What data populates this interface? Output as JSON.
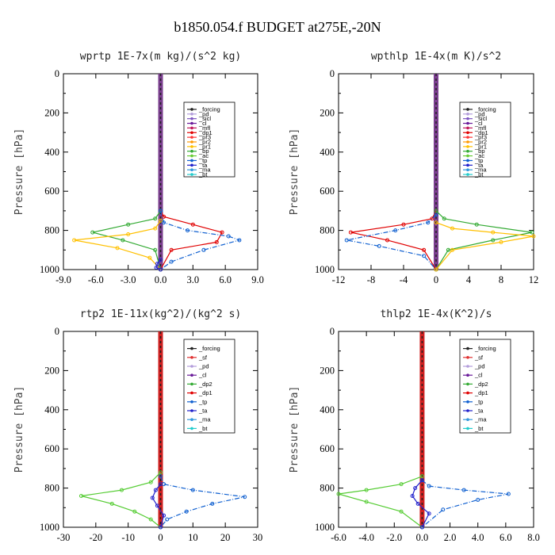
{
  "chart_data": [
    {
      "type": "line",
      "title": "wprtp   1E-7x(m kg)/(s^2 kg)",
      "ylabel": "Pressure [hPa]",
      "ylim": [
        0,
        1000
      ],
      "xlim": [
        -9.0,
        9.0
      ],
      "xticks": [
        "-9.0",
        "-6.0",
        "-3.0",
        "0.0",
        "3.0",
        "6.0",
        "9.0"
      ],
      "xtick_values": [
        -9,
        -6,
        -3,
        0,
        3,
        6,
        9
      ],
      "yticks": [
        "0",
        "200",
        "400",
        "600",
        "800",
        "1000"
      ],
      "legend": [
        "_forcing",
        "_pd",
        "_sicl",
        "_cl",
        "_mfl",
        "_dp1",
        "_pr3",
        "_pr2",
        "_pr1",
        "_bp",
        "_ac",
        "_tp",
        "_ta",
        "_ma",
        "_bt"
      ],
      "series": [
        {
          "name": "_dp1",
          "color": "#e00000",
          "x": [
            0,
            0.3,
            3.0,
            5.7,
            5.2,
            1.0,
            0
          ],
          "y": [
            700,
            730,
            770,
            810,
            860,
            900,
            1000
          ]
        },
        {
          "name": "_bp",
          "color": "#33aa33",
          "x": [
            0,
            -0.5,
            -3.0,
            -6.3,
            -3.5,
            -0.5,
            0
          ],
          "y": [
            700,
            740,
            770,
            810,
            850,
            900,
            1000
          ]
        },
        {
          "name": "_pr1",
          "color": "#ffc000",
          "x": [
            0,
            -0.5,
            -3.0,
            -8.0,
            -4.0,
            -1.0,
            0
          ],
          "y": [
            750,
            790,
            820,
            850,
            890,
            940,
            1000
          ]
        },
        {
          "name": "_tp",
          "color": "#1060d0",
          "x": [
            0,
            0.3,
            2.5,
            6.3,
            7.3,
            4.0,
            1.0,
            0
          ],
          "y": [
            700,
            760,
            800,
            830,
            850,
            900,
            960,
            1000
          ]
        },
        {
          "name": "_ta",
          "color": "#2222cc",
          "x": [
            0,
            -0.3,
            -0.4,
            0
          ],
          "y": [
            950,
            970,
            990,
            1000
          ]
        }
      ]
    },
    {
      "type": "line",
      "title": "wpthlp   1E-4x(m K)/s^2",
      "ylabel": "Pressure [hPa]",
      "ylim": [
        0,
        1000
      ],
      "xlim": [
        -12,
        12
      ],
      "xticks": [
        "-12",
        "-8",
        "-4",
        "0",
        "4",
        "8",
        "12"
      ],
      "xtick_values": [
        -12,
        -8,
        -4,
        0,
        4,
        8,
        12
      ],
      "yticks": [
        "0",
        "200",
        "400",
        "600",
        "800",
        "1000"
      ],
      "legend": [
        "_forcing",
        "_pd",
        "_sicl",
        "_cl",
        "_mfl",
        "_dp1",
        "_pr3",
        "_pr2",
        "_pr1",
        "_bp",
        "_ac",
        "_tp",
        "_ta",
        "_ma",
        "_bt"
      ],
      "series": [
        {
          "name": "_dp1",
          "color": "#e00000",
          "x": [
            0,
            -0.5,
            -4.0,
            -10.5,
            -6.0,
            -1.5,
            0
          ],
          "y": [
            700,
            740,
            770,
            810,
            850,
            900,
            1000
          ]
        },
        {
          "name": "_tp",
          "color": "#1060d0",
          "x": [
            0,
            -1.0,
            -5.0,
            -11.0,
            -7.0,
            -1.5,
            0
          ],
          "y": [
            720,
            760,
            800,
            850,
            880,
            930,
            1000
          ]
        },
        {
          "name": "_bp",
          "color": "#33aa33",
          "x": [
            0,
            1.0,
            5.0,
            11.8,
            7.0,
            1.5,
            0
          ],
          "y": [
            700,
            740,
            770,
            810,
            850,
            900,
            1000
          ]
        },
        {
          "name": "_pr1",
          "color": "#ffc000",
          "x": [
            0,
            2.0,
            7.0,
            12.0,
            8.0,
            2.0,
            0
          ],
          "y": [
            760,
            790,
            810,
            830,
            860,
            900,
            1000
          ]
        }
      ]
    },
    {
      "type": "line",
      "title": "rtp2   1E-11x(kg^2)/(kg^2 s)",
      "ylabel": "Pressure [hPa]",
      "ylim": [
        0,
        1000
      ],
      "xlim": [
        -30,
        30
      ],
      "xticks": [
        "-30",
        "-20",
        "-10",
        "0",
        "10",
        "20",
        "30"
      ],
      "xtick_values": [
        -30,
        -20,
        -10,
        0,
        10,
        20,
        30
      ],
      "yticks": [
        "0",
        "200",
        "400",
        "600",
        "800",
        "1000"
      ],
      "legend": [
        "_forcing",
        "_sf",
        "_pd",
        "_cl",
        "_dp2",
        "_dp1",
        "_tp",
        "_ta",
        "_ma",
        "_bt"
      ],
      "series": [
        {
          "name": "_dp1",
          "color": "#55cc33",
          "x": [
            0,
            -3.0,
            -12.0,
            -24.5,
            -15.0,
            -8.0,
            -3.0,
            0
          ],
          "y": [
            720,
            770,
            810,
            840,
            880,
            920,
            960,
            1000
          ]
        },
        {
          "name": "_tp",
          "color": "#1060d0",
          "x": [
            0,
            1.0,
            10.0,
            26.0,
            16.0,
            8.0,
            2.0,
            0
          ],
          "y": [
            740,
            780,
            810,
            845,
            880,
            920,
            960,
            1000
          ]
        },
        {
          "name": "_ta",
          "color": "#2222cc",
          "x": [
            0,
            -1.5,
            -2.5,
            -1.0,
            1.0,
            0
          ],
          "y": [
            780,
            810,
            850,
            890,
            940,
            1000
          ]
        }
      ]
    },
    {
      "type": "line",
      "title": "thlp2   1E-4x(K^2)/s",
      "ylabel": "Pressure [hPa]",
      "ylim": [
        0,
        1000
      ],
      "xlim": [
        -6.0,
        8.0
      ],
      "xticks": [
        "-6.0",
        "-4.0",
        "-2.0",
        "0.0",
        "2.0",
        "4.0",
        "6.0",
        "8.0"
      ],
      "xtick_values": [
        -6,
        -4,
        -2,
        0,
        2,
        4,
        6,
        8
      ],
      "yticks": [
        "0",
        "200",
        "400",
        "600",
        "800",
        "1000"
      ],
      "legend": [
        "_forcing",
        "_sf",
        "_pd",
        "_cl",
        "_dp2",
        "_dp1",
        "_tp",
        "_ta",
        "_ma",
        "_bt"
      ],
      "series": [
        {
          "name": "_dp1",
          "color": "#55cc33",
          "x": [
            0,
            -1.5,
            -4.0,
            -6.0,
            -4.0,
            -1.5,
            0
          ],
          "y": [
            740,
            780,
            810,
            830,
            870,
            920,
            1000
          ]
        },
        {
          "name": "_tp",
          "color": "#1060d0",
          "x": [
            0,
            0.5,
            3.0,
            6.2,
            4.0,
            1.5,
            0
          ],
          "y": [
            760,
            790,
            810,
            830,
            860,
            910,
            1000
          ]
        },
        {
          "name": "_ta",
          "color": "#2222cc",
          "x": [
            0,
            -0.5,
            -0.7,
            -0.3,
            0.5,
            0
          ],
          "y": [
            760,
            800,
            840,
            880,
            930,
            1000
          ]
        }
      ]
    }
  ],
  "figure": {
    "title": "b1850.054.f  BUDGET at275E,-20N"
  },
  "legend_colors": {
    "_forcing": "#222222",
    "_pd": "#b39ddb",
    "_sicl": "#7e57c2",
    "_cl": "#6a1b9a",
    "_mfl": "#c2185b",
    "_dp1": "#e00000",
    "_pr3": "#ff3333",
    "_pr2": "#ff9900",
    "_pr1": "#ffc000",
    "_bp": "#33aa33",
    "_ac": "#66cc33",
    "_tp": "#1060d0",
    "_ta": "#2222cc",
    "_ma": "#3399dd",
    "_bt": "#22cccc",
    "_sf": "#e03030",
    "_dp2": "#33aa33"
  }
}
